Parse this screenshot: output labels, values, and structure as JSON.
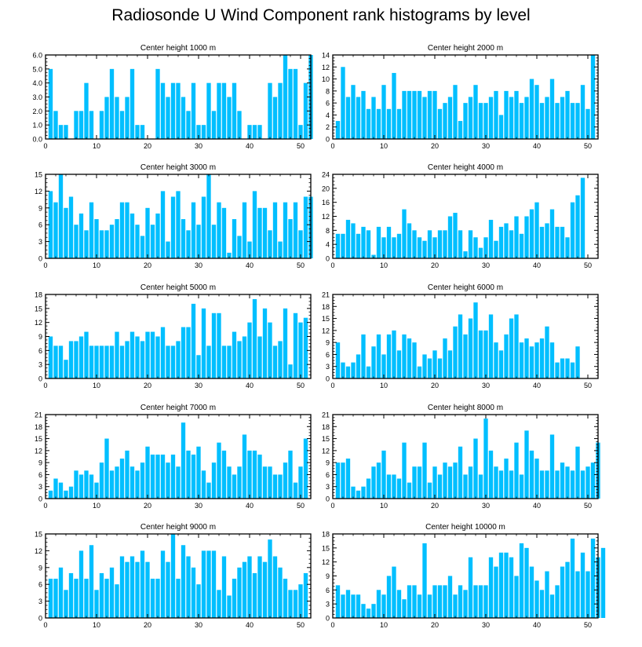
{
  "title": "Radiosonde U Wind Component rank histograms by level",
  "colors": {
    "bar": "#00bfff",
    "axis": "#000000",
    "background": "#ffffff"
  },
  "chart_data": [
    {
      "type": "bar",
      "title": "Center height 1000 m",
      "xlim": [
        0,
        52
      ],
      "xticks": [
        0,
        10,
        20,
        30,
        40,
        50
      ],
      "ylim": [
        0,
        6
      ],
      "yticks": [
        "0.0",
        "1.0",
        "2.0",
        "3.0",
        "4.0",
        "5.0",
        "6.0"
      ],
      "values": [
        5,
        2,
        1,
        1,
        0,
        2,
        2,
        4,
        2,
        0,
        2,
        3,
        5,
        3,
        2,
        3,
        5,
        1,
        1,
        0,
        0,
        5,
        4,
        3,
        4,
        4,
        3,
        2,
        4,
        1,
        1,
        4,
        2,
        4,
        4,
        3,
        4,
        2,
        0,
        1,
        1,
        1,
        0,
        4,
        3,
        4,
        6,
        5,
        5,
        1,
        4,
        6
      ]
    },
    {
      "type": "bar",
      "title": "Center height 2000 m",
      "xlim": [
        0,
        52
      ],
      "xticks": [
        0,
        10,
        20,
        30,
        40,
        50
      ],
      "ylim": [
        0,
        14
      ],
      "yticks": [
        "0",
        "2",
        "4",
        "6",
        "8",
        "10",
        "12",
        "14"
      ],
      "values": [
        3,
        12,
        7,
        9,
        7,
        8,
        5,
        7,
        5,
        9,
        5,
        11,
        5,
        8,
        8,
        8,
        8,
        7,
        8,
        8,
        5,
        6,
        7,
        9,
        3,
        6,
        7,
        9,
        6,
        6,
        7,
        8,
        4,
        8,
        7,
        8,
        6,
        7,
        10,
        9,
        6,
        7,
        10,
        6,
        7,
        8,
        6,
        6,
        9,
        5,
        14
      ]
    },
    {
      "type": "bar",
      "title": "Center height 3000 m",
      "xlim": [
        0,
        52
      ],
      "xticks": [
        0,
        10,
        20,
        30,
        40,
        50
      ],
      "ylim": [
        0,
        15
      ],
      "yticks": [
        "0",
        "3",
        "6",
        "9",
        "12",
        "15"
      ],
      "values": [
        12,
        10,
        15,
        9,
        11,
        6,
        8,
        5,
        10,
        7,
        5,
        5,
        6,
        7,
        10,
        10,
        8,
        6,
        4,
        9,
        6,
        8,
        12,
        3,
        11,
        12,
        7,
        5,
        10,
        6,
        11,
        15,
        6,
        10,
        9,
        1,
        7,
        4,
        10,
        3,
        12,
        9,
        9,
        5,
        10,
        3,
        10,
        7,
        10,
        5,
        11,
        11
      ]
    },
    {
      "type": "bar",
      "title": "Center height 4000 m",
      "xlim": [
        0,
        52
      ],
      "xticks": [
        0,
        10,
        20,
        30,
        40,
        50
      ],
      "ylim": [
        0,
        24
      ],
      "yticks": [
        "0",
        "4",
        "8",
        "12",
        "16",
        "20",
        "24"
      ],
      "values": [
        7,
        7,
        11,
        10,
        7,
        9,
        8,
        1,
        9,
        6,
        9,
        6,
        7,
        14,
        10,
        8,
        6,
        5,
        8,
        6,
        8,
        8,
        12,
        13,
        8,
        2,
        8,
        6,
        3,
        6,
        11,
        5,
        9,
        10,
        8,
        12,
        7,
        12,
        14,
        16,
        9,
        10,
        14,
        9,
        9,
        6,
        16,
        18,
        23
      ]
    },
    {
      "type": "bar",
      "title": "Center height 5000 m",
      "xlim": [
        0,
        52
      ],
      "xticks": [
        0,
        10,
        20,
        30,
        40,
        50
      ],
      "ylim": [
        0,
        18
      ],
      "yticks": [
        "0",
        "3",
        "6",
        "9",
        "12",
        "15",
        "18"
      ],
      "values": [
        9,
        7,
        7,
        4,
        8,
        8,
        9,
        10,
        7,
        7,
        7,
        7,
        7,
        10,
        7,
        8,
        10,
        9,
        8,
        10,
        10,
        9,
        11,
        7,
        7,
        8,
        11,
        11,
        16,
        5,
        15,
        7,
        14,
        14,
        7,
        7,
        10,
        8,
        9,
        12,
        17,
        9,
        15,
        12,
        7,
        8,
        15,
        3,
        14,
        12,
        13
      ]
    },
    {
      "type": "bar",
      "title": "Center height 6000 m",
      "xlim": [
        0,
        52
      ],
      "xticks": [
        0,
        10,
        20,
        30,
        40,
        50
      ],
      "ylim": [
        0,
        21
      ],
      "yticks": [
        "0",
        "3",
        "6",
        "9",
        "12",
        "15",
        "18",
        "21"
      ],
      "values": [
        9,
        4,
        3,
        4,
        6,
        11,
        3,
        8,
        11,
        6,
        11,
        12,
        7,
        11,
        10,
        9,
        3,
        6,
        5,
        7,
        5,
        10,
        7,
        13,
        16,
        11,
        15,
        19,
        12,
        12,
        16,
        9,
        7,
        11,
        15,
        16,
        9,
        10,
        8,
        9,
        10,
        13,
        9,
        4,
        5,
        5,
        4,
        8
      ]
    },
    {
      "type": "bar",
      "title": "Center height 7000 m",
      "xlim": [
        0,
        52
      ],
      "xticks": [
        0,
        10,
        20,
        30,
        40,
        50
      ],
      "ylim": [
        0,
        21
      ],
      "yticks": [
        "0",
        "3",
        "6",
        "9",
        "12",
        "15",
        "18",
        "21"
      ],
      "values": [
        2,
        5,
        4,
        2,
        3,
        7,
        6,
        7,
        6,
        4,
        9,
        15,
        7,
        8,
        10,
        12,
        8,
        7,
        9,
        13,
        11,
        11,
        11,
        9,
        11,
        8,
        19,
        12,
        11,
        13,
        7,
        4,
        9,
        14,
        12,
        8,
        6,
        8,
        16,
        12,
        12,
        11,
        8,
        8,
        6,
        6,
        9,
        12,
        4,
        8,
        15
      ]
    },
    {
      "type": "bar",
      "title": "Center height 8000 m",
      "xlim": [
        0,
        52
      ],
      "xticks": [
        0,
        10,
        20,
        30,
        40,
        50
      ],
      "ylim": [
        0,
        21
      ],
      "yticks": [
        "0",
        "3",
        "6",
        "9",
        "12",
        "15",
        "18",
        "21"
      ],
      "values": [
        9,
        9,
        10,
        3,
        2,
        3,
        5,
        8,
        9,
        12,
        6,
        6,
        5,
        14,
        4,
        8,
        8,
        14,
        4,
        8,
        6,
        9,
        8,
        9,
        13,
        6,
        8,
        15,
        6,
        20,
        12,
        8,
        7,
        10,
        7,
        14,
        6,
        17,
        12,
        10,
        7,
        7,
        16,
        7,
        9,
        8,
        7,
        13,
        7,
        8,
        9,
        14
      ]
    },
    {
      "type": "bar",
      "title": "Center height 9000 m",
      "xlim": [
        0,
        52
      ],
      "xticks": [
        0,
        10,
        20,
        30,
        40,
        50
      ],
      "ylim": [
        0,
        15
      ],
      "yticks": [
        "0",
        "3",
        "6",
        "9",
        "12",
        "15"
      ],
      "values": [
        7,
        7,
        9,
        5,
        8,
        7,
        12,
        7,
        13,
        5,
        8,
        7,
        9,
        6,
        11,
        10,
        11,
        10,
        12,
        10,
        7,
        7,
        12,
        10,
        15,
        7,
        13,
        11,
        9,
        6,
        12,
        12,
        12,
        5,
        11,
        4,
        7,
        9,
        10,
        11,
        8,
        11,
        10,
        14,
        11,
        9,
        7,
        5,
        5,
        6,
        8
      ]
    },
    {
      "type": "bar",
      "title": "Center height 10000 m",
      "xlim": [
        0,
        52
      ],
      "xticks": [
        0,
        10,
        20,
        30,
        40,
        50
      ],
      "ylim": [
        0,
        18
      ],
      "yticks": [
        "0",
        "3",
        "6",
        "9",
        "12",
        "15",
        "18"
      ],
      "values": [
        7,
        5,
        6,
        5,
        5,
        3,
        2,
        3,
        6,
        5,
        9,
        11,
        6,
        4,
        7,
        7,
        5,
        16,
        5,
        7,
        7,
        7,
        9,
        5,
        7,
        6,
        13,
        7,
        7,
        7,
        13,
        11,
        14,
        14,
        13,
        9,
        16,
        15,
        11,
        8,
        6,
        10,
        5,
        7,
        11,
        12,
        17,
        10,
        14,
        10,
        17,
        13,
        15
      ]
    }
  ]
}
